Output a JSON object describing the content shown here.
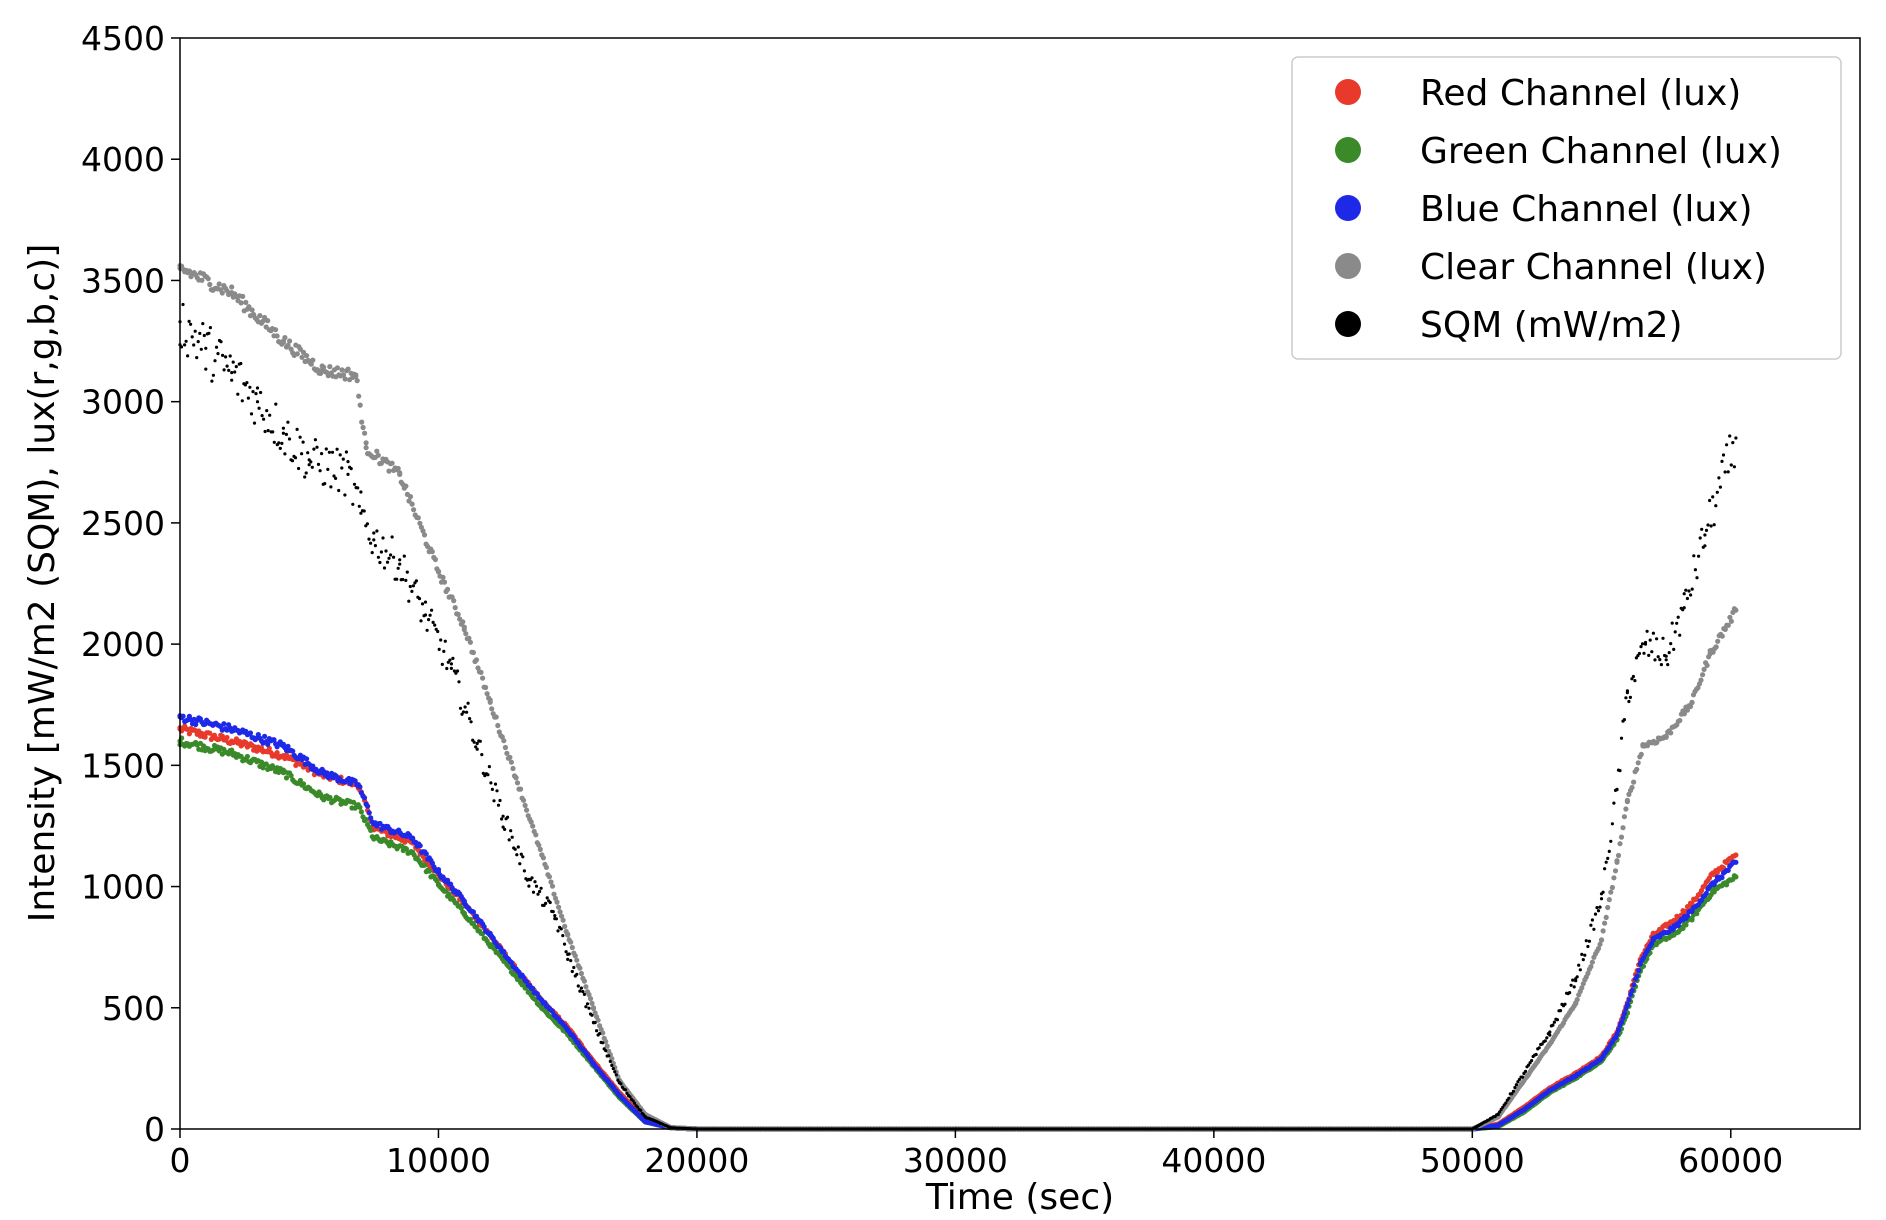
{
  "chart_data": {
    "type": "scatter",
    "title": "",
    "xlabel": "Time (sec)",
    "ylabel": "Intensity [mW/m2 (SQM), lux(r,g,b,c)]",
    "xlim": [
      0,
      65000
    ],
    "ylim": [
      0,
      4500
    ],
    "x_ticks": [
      0,
      10000,
      20000,
      30000,
      40000,
      50000,
      60000
    ],
    "y_ticks": [
      0,
      500,
      1000,
      1500,
      2000,
      2500,
      3000,
      3500,
      4000,
      4500
    ],
    "grid": false,
    "legend_position": "top-right",
    "series": [
      {
        "name": "Red Channel (lux)",
        "color": "#e8392a",
        "points": [
          [
            0,
            1650
          ],
          [
            2000,
            1600
          ],
          [
            4000,
            1540
          ],
          [
            5500,
            1460
          ],
          [
            6900,
            1420
          ],
          [
            7500,
            1240
          ],
          [
            9000,
            1180
          ],
          [
            10000,
            1050
          ],
          [
            11000,
            930
          ],
          [
            12000,
            800
          ],
          [
            13000,
            660
          ],
          [
            14000,
            530
          ],
          [
            15000,
            420
          ],
          [
            16000,
            280
          ],
          [
            17000,
            150
          ],
          [
            18000,
            40
          ],
          [
            19000,
            5
          ],
          [
            20000,
            0
          ],
          [
            30000,
            0
          ],
          [
            40000,
            0
          ],
          [
            50000,
            0
          ],
          [
            51000,
            20
          ],
          [
            52000,
            90
          ],
          [
            53000,
            170
          ],
          [
            54000,
            230
          ],
          [
            55000,
            300
          ],
          [
            55600,
            400
          ],
          [
            56000,
            520
          ],
          [
            56500,
            700
          ],
          [
            57000,
            800
          ],
          [
            57800,
            860
          ],
          [
            58500,
            930
          ],
          [
            59300,
            1050
          ],
          [
            60200,
            1130
          ]
        ]
      },
      {
        "name": "Green Channel (lux)",
        "color": "#3a8a2a",
        "points": [
          [
            0,
            1600
          ],
          [
            2000,
            1550
          ],
          [
            4000,
            1470
          ],
          [
            5500,
            1370
          ],
          [
            6900,
            1330
          ],
          [
            7500,
            1200
          ],
          [
            9000,
            1140
          ],
          [
            10000,
            1010
          ],
          [
            11000,
            890
          ],
          [
            12000,
            760
          ],
          [
            13000,
            630
          ],
          [
            14000,
            500
          ],
          [
            15000,
            390
          ],
          [
            16000,
            260
          ],
          [
            17000,
            130
          ],
          [
            18000,
            30
          ],
          [
            19000,
            5
          ],
          [
            20000,
            0
          ],
          [
            30000,
            0
          ],
          [
            40000,
            0
          ],
          [
            50000,
            0
          ],
          [
            51000,
            10
          ],
          [
            52000,
            70
          ],
          [
            53000,
            150
          ],
          [
            54000,
            210
          ],
          [
            55000,
            280
          ],
          [
            55600,
            370
          ],
          [
            56000,
            480
          ],
          [
            56500,
            650
          ],
          [
            57000,
            760
          ],
          [
            57800,
            800
          ],
          [
            58500,
            870
          ],
          [
            59300,
            980
          ],
          [
            60200,
            1040
          ]
        ]
      },
      {
        "name": "Blue Channel (lux)",
        "color": "#1e29e8",
        "points": [
          [
            0,
            1700
          ],
          [
            2000,
            1650
          ],
          [
            4000,
            1580
          ],
          [
            5500,
            1470
          ],
          [
            6900,
            1420
          ],
          [
            7500,
            1260
          ],
          [
            9000,
            1200
          ],
          [
            10000,
            1060
          ],
          [
            11000,
            940
          ],
          [
            12000,
            800
          ],
          [
            13000,
            660
          ],
          [
            14000,
            530
          ],
          [
            15000,
            410
          ],
          [
            16000,
            270
          ],
          [
            17000,
            140
          ],
          [
            18000,
            30
          ],
          [
            19000,
            5
          ],
          [
            20000,
            0
          ],
          [
            30000,
            0
          ],
          [
            40000,
            0
          ],
          [
            50000,
            0
          ],
          [
            51000,
            15
          ],
          [
            52000,
            80
          ],
          [
            53000,
            160
          ],
          [
            54000,
            220
          ],
          [
            55000,
            290
          ],
          [
            55600,
            390
          ],
          [
            56000,
            510
          ],
          [
            56500,
            680
          ],
          [
            57000,
            780
          ],
          [
            57800,
            830
          ],
          [
            58500,
            900
          ],
          [
            59300,
            1010
          ],
          [
            60200,
            1100
          ]
        ]
      },
      {
        "name": "Clear Channel (lux)",
        "color": "#8a8a8a",
        "points": [
          [
            0,
            3550
          ],
          [
            2000,
            3450
          ],
          [
            4000,
            3250
          ],
          [
            5500,
            3130
          ],
          [
            6800,
            3110
          ],
          [
            7200,
            2810
          ],
          [
            8500,
            2700
          ],
          [
            10000,
            2300
          ],
          [
            11000,
            2070
          ],
          [
            12000,
            1760
          ],
          [
            13000,
            1450
          ],
          [
            14000,
            1130
          ],
          [
            15000,
            800
          ],
          [
            16000,
            500
          ],
          [
            17000,
            200
          ],
          [
            18000,
            60
          ],
          [
            19000,
            5
          ],
          [
            20000,
            0
          ],
          [
            30000,
            0
          ],
          [
            40000,
            0
          ],
          [
            50000,
            0
          ],
          [
            51000,
            50
          ],
          [
            52000,
            200
          ],
          [
            53000,
            350
          ],
          [
            54000,
            520
          ],
          [
            55000,
            780
          ],
          [
            55600,
            1100
          ],
          [
            56000,
            1350
          ],
          [
            56600,
            1580
          ],
          [
            57500,
            1620
          ],
          [
            58500,
            1760
          ],
          [
            59200,
            1960
          ],
          [
            60200,
            2140
          ]
        ]
      },
      {
        "name": "SQM (mW/m2)",
        "color": "#000000",
        "points": [
          [
            0,
            3330
          ],
          [
            1000,
            3220
          ],
          [
            2000,
            3120
          ],
          [
            3000,
            3000
          ],
          [
            4000,
            2870
          ],
          [
            5000,
            2760
          ],
          [
            6500,
            2700
          ],
          [
            7000,
            2540
          ],
          [
            7500,
            2430
          ],
          [
            8500,
            2330
          ],
          [
            9500,
            2120
          ],
          [
            10500,
            1900
          ],
          [
            11500,
            1590
          ],
          [
            12500,
            1290
          ],
          [
            13500,
            1030
          ],
          [
            14500,
            880
          ],
          [
            15000,
            720
          ],
          [
            16000,
            440
          ],
          [
            17000,
            190
          ],
          [
            18000,
            50
          ],
          [
            19000,
            5
          ],
          [
            20000,
            0
          ],
          [
            30000,
            0
          ],
          [
            40000,
            0
          ],
          [
            50000,
            0
          ],
          [
            51000,
            60
          ],
          [
            52000,
            230
          ],
          [
            53000,
            400
          ],
          [
            54000,
            620
          ],
          [
            55000,
            950
          ],
          [
            55600,
            1400
          ],
          [
            56000,
            1800
          ],
          [
            56700,
            2000
          ],
          [
            57500,
            1950
          ],
          [
            58200,
            2150
          ],
          [
            59000,
            2450
          ],
          [
            60200,
            2850
          ]
        ]
      }
    ]
  }
}
